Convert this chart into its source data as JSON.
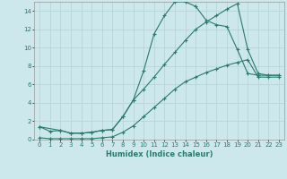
{
  "xlabel": "Humidex (Indice chaleur)",
  "bg_color": "#cce8ec",
  "grid_color": "#b8d4d8",
  "line_color": "#2a7a6e",
  "xlim": [
    -0.5,
    23.5
  ],
  "ylim": [
    0,
    15
  ],
  "xticks": [
    0,
    1,
    2,
    3,
    4,
    5,
    6,
    7,
    8,
    9,
    10,
    11,
    12,
    13,
    14,
    15,
    16,
    17,
    18,
    19,
    20,
    21,
    22,
    23
  ],
  "yticks": [
    0,
    2,
    4,
    6,
    8,
    10,
    12,
    14
  ],
  "line1_x": [
    0,
    1,
    2,
    3,
    4,
    5,
    6,
    7,
    8,
    9,
    10,
    11,
    12,
    13,
    14,
    15,
    16,
    17,
    18,
    19,
    20,
    21,
    22,
    23
  ],
  "line1_y": [
    1.4,
    0.9,
    1.0,
    0.7,
    0.7,
    0.8,
    1.0,
    1.1,
    2.5,
    4.3,
    7.5,
    11.5,
    13.5,
    15.0,
    15.0,
    14.5,
    13.0,
    12.5,
    12.3,
    9.8,
    7.2,
    7.0,
    7.0,
    7.0
  ],
  "line2_x": [
    0,
    2,
    3,
    4,
    5,
    6,
    7,
    8,
    9,
    10,
    11,
    12,
    13,
    14,
    15,
    16,
    17,
    18,
    19,
    20,
    21,
    22,
    23
  ],
  "line2_y": [
    1.4,
    1.0,
    0.7,
    0.7,
    0.8,
    1.0,
    1.1,
    2.5,
    4.3,
    5.5,
    6.8,
    8.2,
    9.5,
    10.8,
    12.0,
    12.8,
    13.5,
    14.2,
    14.8,
    9.8,
    7.2,
    7.0,
    7.0
  ],
  "line3_x": [
    0,
    1,
    2,
    3,
    4,
    5,
    6,
    7,
    8,
    9,
    10,
    11,
    12,
    13,
    14,
    15,
    16,
    17,
    18,
    19,
    20,
    21,
    22,
    23
  ],
  "line3_y": [
    0.2,
    0.1,
    0.1,
    0.1,
    0.1,
    0.1,
    0.2,
    0.3,
    0.8,
    1.5,
    2.5,
    3.5,
    4.5,
    5.5,
    6.3,
    6.8,
    7.3,
    7.7,
    8.1,
    8.4,
    8.7,
    6.8,
    6.8,
    6.8
  ]
}
